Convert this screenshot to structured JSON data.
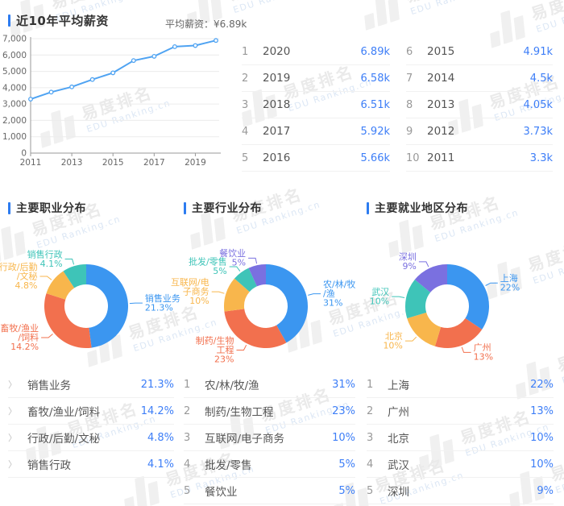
{
  "brand": {
    "watermark_text": "易度排名",
    "watermark_domain": "EDU Ranking.cn"
  },
  "salary": {
    "title": "近10年平均薪资",
    "avg_label": "平均薪资：",
    "avg_value": "¥6.89k",
    "ranking_left": [
      {
        "rank": "1",
        "year": "2020",
        "value": "6.89k"
      },
      {
        "rank": "2",
        "year": "2019",
        "value": "6.58k"
      },
      {
        "rank": "3",
        "year": "2018",
        "value": "6.51k"
      },
      {
        "rank": "4",
        "year": "2017",
        "value": "5.92k"
      },
      {
        "rank": "5",
        "year": "2016",
        "value": "5.66k"
      }
    ],
    "ranking_right": [
      {
        "rank": "6",
        "year": "2015",
        "value": "4.91k"
      },
      {
        "rank": "7",
        "year": "2014",
        "value": "4.5k"
      },
      {
        "rank": "8",
        "year": "2013",
        "value": "4.05k"
      },
      {
        "rank": "9",
        "year": "2012",
        "value": "3.73k"
      },
      {
        "rank": "10",
        "year": "2011",
        "value": "3.3k"
      }
    ]
  },
  "sections": {
    "occupation": {
      "title": "主要职业分布",
      "list": [
        {
          "name": "销售业务",
          "value": "21.3%"
        },
        {
          "name": "畜牧/渔业/饲料",
          "value": "14.2%"
        },
        {
          "name": "行政/后勤/文秘",
          "value": "4.8%"
        },
        {
          "name": "销售行政",
          "value": "4.1%"
        }
      ]
    },
    "industry": {
      "title": "主要行业分布",
      "list": [
        {
          "rank": "1",
          "name": "农/林/牧/渔",
          "value": "31%"
        },
        {
          "rank": "2",
          "name": "制药/生物工程",
          "value": "23%"
        },
        {
          "rank": "3",
          "name": "互联网/电子商务",
          "value": "10%"
        },
        {
          "rank": "4",
          "name": "批发/零售",
          "value": "5%"
        },
        {
          "rank": "5",
          "name": "餐饮业",
          "value": "5%"
        }
      ]
    },
    "region": {
      "title": "主要就业地区分布",
      "list": [
        {
          "rank": "1",
          "name": "上海",
          "value": "22%"
        },
        {
          "rank": "2",
          "name": "广州",
          "value": "13%"
        },
        {
          "rank": "3",
          "name": "北京",
          "value": "10%"
        },
        {
          "rank": "4",
          "name": "武汉",
          "value": "10%"
        },
        {
          "rank": "5",
          "name": "深圳",
          "value": "9%"
        }
      ]
    }
  },
  "chart_data": [
    {
      "type": "line",
      "title": "近10年平均薪资",
      "xlabel": "",
      "ylabel": "",
      "x": [
        2011,
        2012,
        2013,
        2014,
        2015,
        2016,
        2017,
        2018,
        2019,
        2020
      ],
      "values": [
        3300,
        3730,
        4050,
        4500,
        4910,
        5660,
        5920,
        6510,
        6580,
        6890
      ],
      "ylim": [
        0,
        7000
      ],
      "ytick_step": 1000,
      "xticks": [
        2011,
        2013,
        2015,
        2017,
        2019
      ],
      "grid": true,
      "legend_position": "none",
      "color": "#4fa3f2"
    },
    {
      "type": "pie",
      "title": "主要职业分布",
      "donut": true,
      "slices": [
        {
          "name": "销售业务",
          "pct": 21.3,
          "color": "#3b96f0",
          "label_lines": [
            "销售业务",
            "21.3%"
          ]
        },
        {
          "name": "畜牧/渔业/饲料",
          "pct": 14.2,
          "color": "#f2704e",
          "label_lines": [
            "畜牧/渔业",
            "/饲料",
            "14.2%"
          ]
        },
        {
          "name": "行政/后勤/文秘",
          "pct": 4.8,
          "color": "#f8b64c",
          "label_lines": [
            "行政/后勤",
            "/文秘",
            "4.8%"
          ]
        },
        {
          "name": "销售行政",
          "pct": 4.1,
          "color": "#3ec4b8",
          "label_lines": [
            "销售行政",
            "4.1%"
          ]
        }
      ]
    },
    {
      "type": "pie",
      "title": "主要行业分布",
      "donut": true,
      "slices": [
        {
          "name": "农/林/牧/渔",
          "pct": 31,
          "color": "#3b96f0",
          "label_lines": [
            "农/林/牧",
            "/渔",
            "31%"
          ]
        },
        {
          "name": "制药/生物工程",
          "pct": 23,
          "color": "#f2704e",
          "label_lines": [
            "制药/生物",
            "工程",
            "23%"
          ]
        },
        {
          "name": "互联网/电子商务",
          "pct": 10,
          "color": "#f8b64c",
          "label_lines": [
            "互联网/电",
            "子商务",
            "10%"
          ]
        },
        {
          "name": "批发/零售",
          "pct": 5,
          "color": "#3ec4b8",
          "label_lines": [
            "批发/零售",
            "5%"
          ]
        },
        {
          "name": "餐饮业",
          "pct": 5,
          "color": "#7a70e0",
          "label_lines": [
            "餐饮业",
            "5%"
          ]
        }
      ]
    },
    {
      "type": "pie",
      "title": "主要就业地区分布",
      "donut": true,
      "slices": [
        {
          "name": "上海",
          "pct": 22,
          "color": "#3b96f0",
          "label_lines": [
            "上海",
            "22%"
          ]
        },
        {
          "name": "广州",
          "pct": 13,
          "color": "#f2704e",
          "label_lines": [
            "广州",
            "13%"
          ]
        },
        {
          "name": "北京",
          "pct": 10,
          "color": "#f8b64c",
          "label_lines": [
            "北京",
            "10%"
          ]
        },
        {
          "name": "武汉",
          "pct": 10,
          "color": "#3ec4b8",
          "label_lines": [
            "武汉",
            "10%"
          ]
        },
        {
          "name": "深圳",
          "pct": 9,
          "color": "#7a70e0",
          "label_lines": [
            "深圳",
            "9%"
          ]
        }
      ]
    }
  ]
}
